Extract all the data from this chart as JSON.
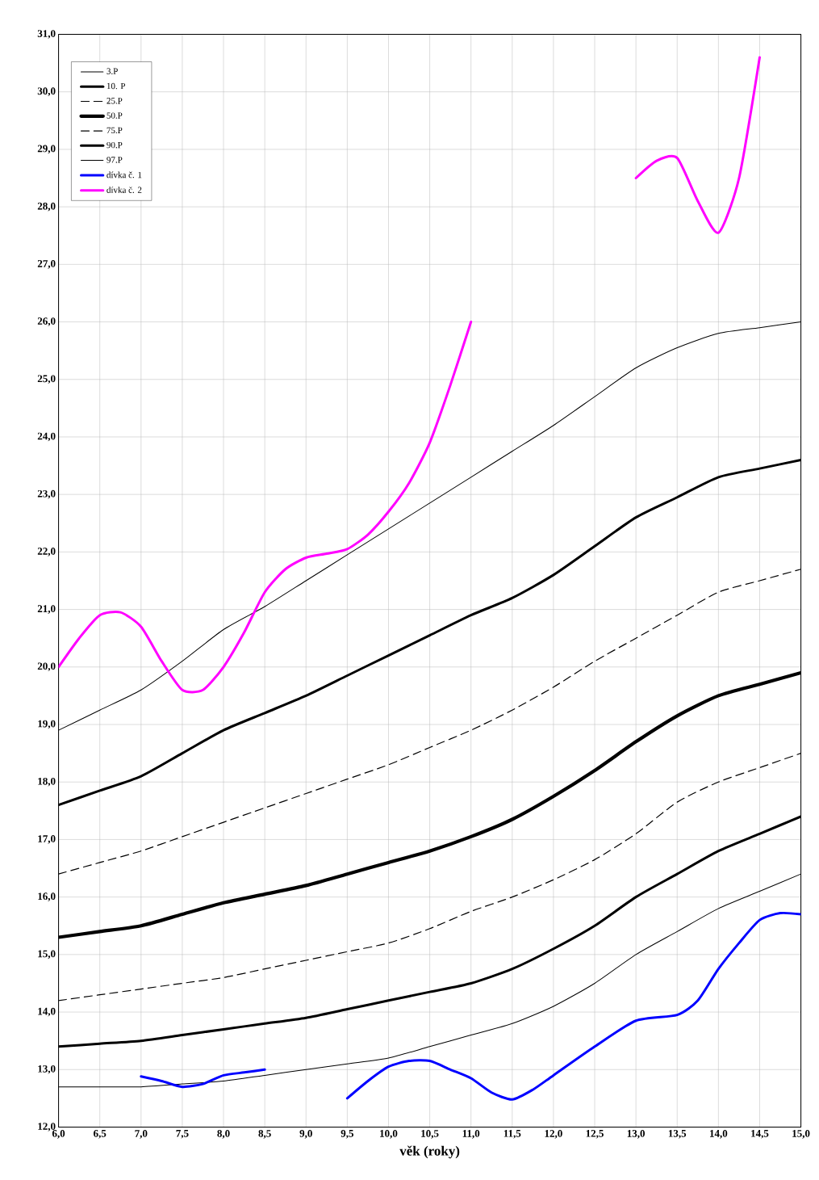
{
  "chart_data": {
    "type": "line",
    "xlabel": "věk (roky)",
    "x": [
      6.0,
      6.5,
      7.0,
      7.5,
      8.0,
      8.5,
      9.0,
      9.5,
      10.0,
      10.5,
      11.0,
      11.5,
      12.0,
      12.5,
      13.0,
      13.5,
      14.0,
      14.5,
      15.0
    ],
    "series": [
      {
        "name": "3.P",
        "color": "#000000",
        "line_style": "solid",
        "values": [
          12.7,
          12.7,
          12.7,
          12.75,
          12.8,
          12.9,
          13.0,
          13.1,
          13.2,
          13.4,
          13.6,
          13.8,
          14.1,
          14.5,
          15.0,
          15.4,
          15.8,
          16.1,
          16.4
        ]
      },
      {
        "name": "10. P",
        "color": "#000000",
        "line_style": "solid",
        "values": [
          13.4,
          13.45,
          13.5,
          13.6,
          13.7,
          13.8,
          13.9,
          14.05,
          14.2,
          14.35,
          14.5,
          14.75,
          15.1,
          15.5,
          16.0,
          16.4,
          16.8,
          17.1,
          17.4
        ]
      },
      {
        "name": "25.P",
        "color": "#000000",
        "line_style": "dashed",
        "values": [
          14.2,
          14.3,
          14.4,
          14.5,
          14.6,
          14.75,
          14.9,
          15.05,
          15.2,
          15.45,
          15.75,
          16.0,
          16.3,
          16.65,
          17.1,
          17.65,
          18.0,
          18.25,
          18.5
        ]
      },
      {
        "name": "50.P",
        "color": "#000000",
        "line_style": "solid",
        "values": [
          15.3,
          15.4,
          15.5,
          15.7,
          15.9,
          16.05,
          16.2,
          16.4,
          16.6,
          16.8,
          17.05,
          17.35,
          17.75,
          18.2,
          18.7,
          19.15,
          19.5,
          19.7,
          19.9
        ]
      },
      {
        "name": "75.P",
        "color": "#000000",
        "line_style": "dashed",
        "values": [
          16.4,
          16.6,
          16.8,
          17.05,
          17.3,
          17.55,
          17.8,
          18.05,
          18.3,
          18.6,
          18.9,
          19.25,
          19.65,
          20.1,
          20.5,
          20.9,
          21.3,
          21.5,
          21.7
        ]
      },
      {
        "name": "90.P",
        "color": "#000000",
        "line_style": "solid",
        "values": [
          17.6,
          17.85,
          18.1,
          18.5,
          18.9,
          19.2,
          19.5,
          19.85,
          20.2,
          20.55,
          20.9,
          21.2,
          21.6,
          22.1,
          22.6,
          22.95,
          23.3,
          23.45,
          23.6
        ]
      },
      {
        "name": "97.P",
        "color": "#000000",
        "line_style": "solid",
        "values": [
          18.9,
          19.25,
          19.6,
          20.1,
          20.65,
          21.05,
          21.5,
          21.95,
          22.4,
          22.85,
          23.3,
          23.75,
          24.2,
          24.7,
          25.2,
          25.55,
          25.8,
          25.9,
          26.0
        ]
      },
      {
        "name": "dívka č. 1",
        "color": "#0000ff",
        "line_style": "solid",
        "x": [
          7.0,
          7.25,
          7.5,
          7.75,
          8.0,
          8.25,
          8.5,
          9.0,
          9.5,
          9.75,
          10.0,
          10.25,
          10.5,
          10.75,
          11.0,
          11.25,
          11.5,
          11.75,
          12.0,
          12.5,
          13.0,
          13.5,
          13.75,
          14.0,
          14.25,
          14.5,
          14.75,
          15.0
        ],
        "values": [
          12.88,
          12.8,
          12.7,
          12.75,
          12.9,
          12.95,
          13.0,
          null,
          12.5,
          12.8,
          13.05,
          13.15,
          13.15,
          13.0,
          12.85,
          12.6,
          12.48,
          12.65,
          12.9,
          13.4,
          13.85,
          13.95,
          14.2,
          14.75,
          15.2,
          15.6,
          15.72,
          15.7
        ]
      },
      {
        "name": "dívka č. 2",
        "color": "#ff00ff",
        "line_style": "solid",
        "x": [
          6.0,
          6.25,
          6.5,
          6.75,
          7.0,
          7.25,
          7.5,
          7.75,
          8.0,
          8.25,
          8.5,
          8.75,
          9.0,
          9.25,
          9.5,
          9.75,
          10.0,
          10.25,
          10.5,
          10.75,
          11.0,
          12.0,
          13.0,
          13.25,
          13.5,
          13.75,
          14.0,
          14.25,
          14.5
        ],
        "values": [
          20.0,
          20.5,
          20.9,
          20.95,
          20.7,
          20.1,
          19.6,
          19.6,
          20.0,
          20.6,
          21.3,
          21.7,
          21.9,
          21.97,
          22.05,
          22.3,
          22.7,
          23.2,
          23.9,
          24.9,
          26.0,
          null,
          28.5,
          28.8,
          28.85,
          28.1,
          27.55,
          28.5,
          30.6
        ]
      }
    ],
    "xlim": [
      6.0,
      15.0
    ],
    "xticks": [
      {
        "value": 6.0,
        "label": "6,0"
      },
      {
        "value": 6.5,
        "label": "6,5"
      },
      {
        "value": 7.0,
        "label": "7,0"
      },
      {
        "value": 7.5,
        "label": "7,5"
      },
      {
        "value": 8.0,
        "label": "8,0"
      },
      {
        "value": 8.5,
        "label": "8,5"
      },
      {
        "value": 9.0,
        "label": "9,0"
      },
      {
        "value": 9.5,
        "label": "9,5"
      },
      {
        "value": 10.0,
        "label": "10,0"
      },
      {
        "value": 10.5,
        "label": "10,5"
      },
      {
        "value": 11.0,
        "label": "11,0"
      },
      {
        "value": 11.5,
        "label": "11,5"
      },
      {
        "value": 12.0,
        "label": "12,0"
      },
      {
        "value": 12.5,
        "label": "12,5"
      },
      {
        "value": 13.0,
        "label": "13,0"
      },
      {
        "value": 13.5,
        "label": "13,5"
      },
      {
        "value": 14.0,
        "label": "14,0"
      },
      {
        "value": 14.5,
        "label": "14,5"
      },
      {
        "value": 15.0,
        "label": "15,0"
      }
    ],
    "ylim": [
      12.0,
      31.0
    ],
    "yticks": [
      {
        "value": 12,
        "label": "12,0"
      },
      {
        "value": 13,
        "label": "13,0"
      },
      {
        "value": 14,
        "label": "14,0"
      },
      {
        "value": 15,
        "label": "15,0"
      },
      {
        "value": 16,
        "label": "16,0"
      },
      {
        "value": 17,
        "label": "17,0"
      },
      {
        "value": 18,
        "label": "18,0"
      },
      {
        "value": 19,
        "label": "19,0"
      },
      {
        "value": 20,
        "label": "20,0"
      },
      {
        "value": 21,
        "label": "21,0"
      },
      {
        "value": 22,
        "label": "22,0"
      },
      {
        "value": 23,
        "label": "23,0"
      },
      {
        "value": 24,
        "label": "24,0"
      },
      {
        "value": 25,
        "label": "25,0"
      },
      {
        "value": 26,
        "label": "26,0"
      },
      {
        "value": 27,
        "label": "27,0"
      },
      {
        "value": 28,
        "label": "28,0"
      },
      {
        "value": 29,
        "label": "29,0"
      },
      {
        "value": 30,
        "label": "30,0"
      },
      {
        "value": 31,
        "label": "31,0"
      }
    ],
    "grid": true,
    "legend": "top left",
    "marker": "none"
  }
}
